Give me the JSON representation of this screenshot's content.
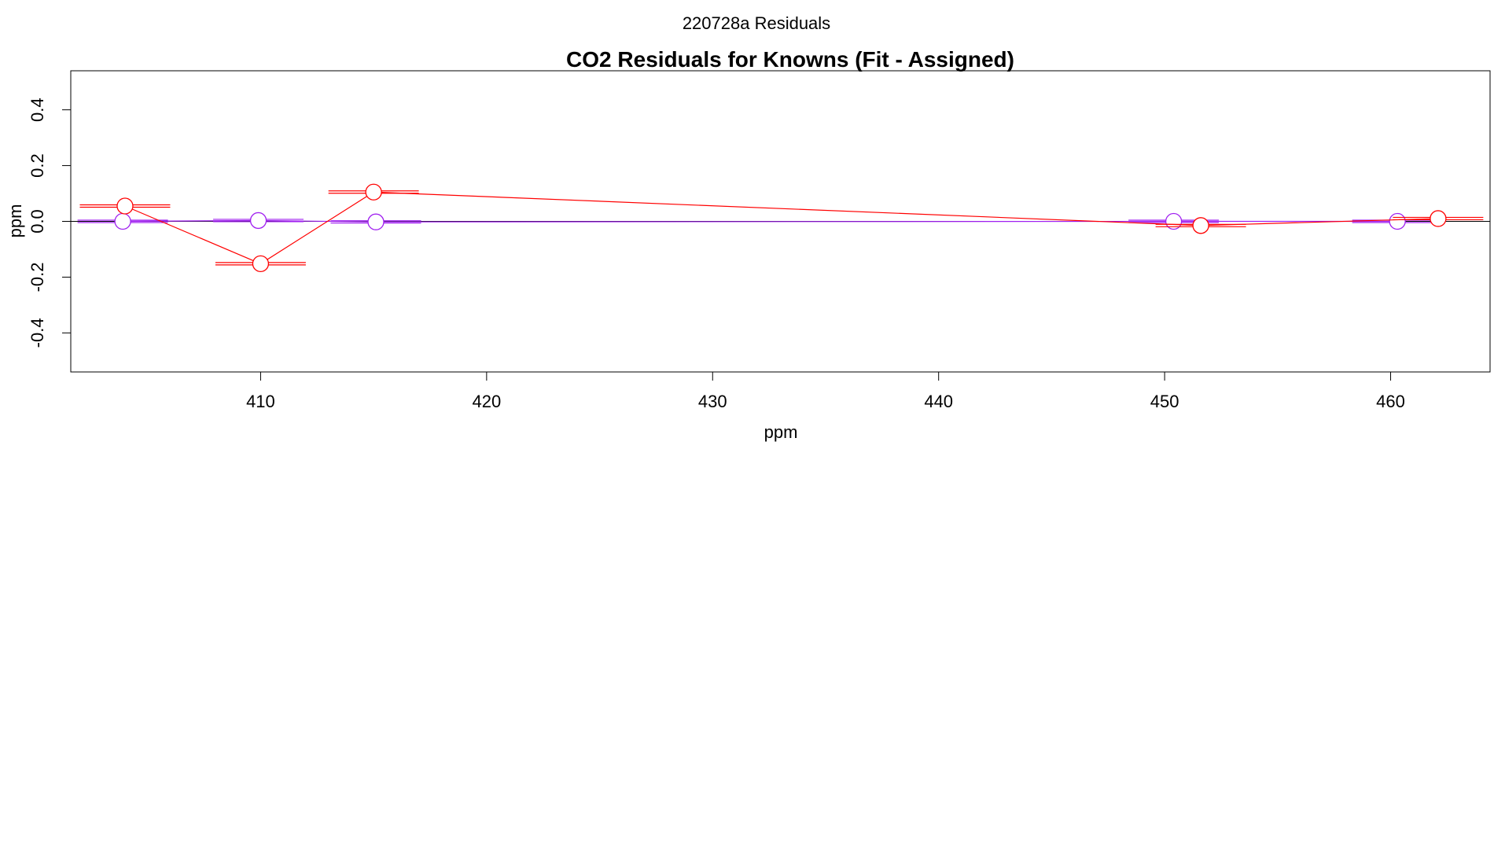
{
  "page": {
    "heading": "220728a  Residuals"
  },
  "chart_data": {
    "type": "scatter",
    "title": "CO2 Residuals for Knowns (Fit - Assigned)",
    "xlabel": "ppm",
    "ylabel": "ppm",
    "xlim": [
      401.6,
      464.4
    ],
    "ylim": [
      -0.54,
      0.54
    ],
    "x_ticks": [
      410,
      420,
      430,
      440,
      450,
      460
    ],
    "y_ticks": [
      -0.4,
      -0.2,
      0.0,
      0.2,
      0.4
    ],
    "x_tick_labels": [
      "410",
      "420",
      "430",
      "440",
      "450",
      "460"
    ],
    "y_tick_labels": [
      "-0.4",
      "-0.2",
      "0.0",
      "0.2",
      "0.4"
    ],
    "reference_line_y": 0,
    "grid": false,
    "legend": "none",
    "series": [
      {
        "color": "#ff0000",
        "errorbar_halfwidth_x": 1.0,
        "points": [
          {
            "x": 404.0,
            "y": 0.055
          },
          {
            "x": 410.0,
            "y": -0.152
          },
          {
            "x": 415.0,
            "y": 0.105
          },
          {
            "x": 451.6,
            "y": -0.015
          },
          {
            "x": 462.1,
            "y": 0.01
          }
        ]
      },
      {
        "color": "#a020f0",
        "errorbar_halfwidth_x": 1.0,
        "points": [
          {
            "x": 403.9,
            "y": 0.0
          },
          {
            "x": 409.9,
            "y": 0.003
          },
          {
            "x": 415.1,
            "y": -0.002
          },
          {
            "x": 450.4,
            "y": 0.0
          },
          {
            "x": 460.3,
            "y": 0.0
          }
        ]
      }
    ]
  }
}
